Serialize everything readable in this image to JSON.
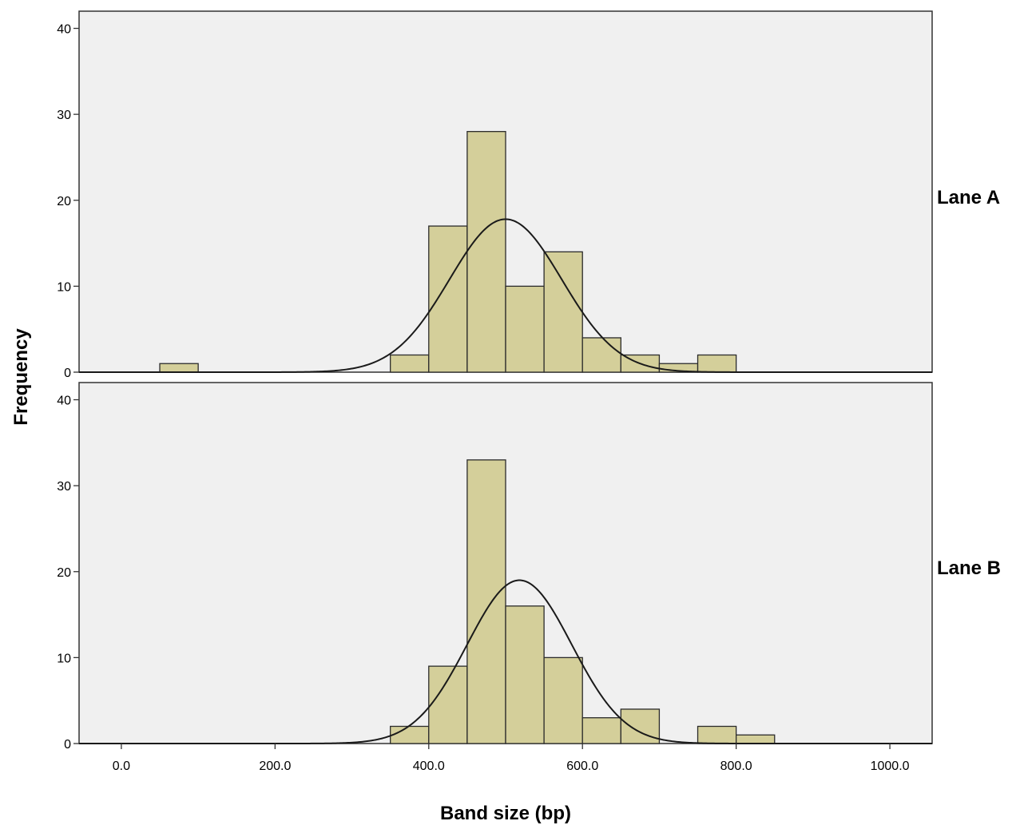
{
  "chart_data": {
    "type": "bar",
    "subtype": "histogram-with-normal-curve",
    "xlabel": "Band size (bp)",
    "ylabel": "Frequency",
    "xlim": [
      -55,
      1055
    ],
    "ylim": [
      0,
      42
    ],
    "xticks": [
      0,
      200,
      400,
      600,
      800,
      1000
    ],
    "xtick_labels": [
      "0.0",
      "200.0",
      "400.0",
      "600.0",
      "800.0",
      "1000.0"
    ],
    "yticks": [
      0,
      10,
      20,
      30,
      40
    ],
    "ytick_labels": [
      "0",
      "10",
      "20",
      "30",
      "40"
    ],
    "bin_width": 50,
    "grid": false,
    "colors": {
      "bar_fill": "#d4cf9a",
      "bar_stroke": "#2b2b2b",
      "panel_bg": "#f0f0f0",
      "curve": "#1a1a1a"
    },
    "panels": [
      {
        "name": "Lane A",
        "bins": [
          {
            "x0": 50,
            "x1": 100,
            "count": 1
          },
          {
            "x0": 350,
            "x1": 400,
            "count": 2
          },
          {
            "x0": 400,
            "x1": 450,
            "count": 17
          },
          {
            "x0": 450,
            "x1": 500,
            "count": 28
          },
          {
            "x0": 500,
            "x1": 550,
            "count": 10
          },
          {
            "x0": 550,
            "x1": 600,
            "count": 14
          },
          {
            "x0": 600,
            "x1": 650,
            "count": 4
          },
          {
            "x0": 650,
            "x1": 700,
            "count": 2
          },
          {
            "x0": 700,
            "x1": 750,
            "count": 1
          },
          {
            "x0": 750,
            "x1": 800,
            "count": 2
          }
        ],
        "normal_curve": {
          "mean": 500,
          "sd": 73,
          "peak": 17.8
        }
      },
      {
        "name": "Lane B",
        "bins": [
          {
            "x0": 350,
            "x1": 400,
            "count": 2
          },
          {
            "x0": 400,
            "x1": 450,
            "count": 9
          },
          {
            "x0": 450,
            "x1": 500,
            "count": 33
          },
          {
            "x0": 500,
            "x1": 550,
            "count": 16
          },
          {
            "x0": 550,
            "x1": 600,
            "count": 10
          },
          {
            "x0": 600,
            "x1": 650,
            "count": 3
          },
          {
            "x0": 650,
            "x1": 700,
            "count": 4
          },
          {
            "x0": 750,
            "x1": 800,
            "count": 2
          },
          {
            "x0": 800,
            "x1": 850,
            "count": 1
          }
        ],
        "normal_curve": {
          "mean": 518,
          "sd": 68,
          "peak": 19
        }
      }
    ]
  }
}
